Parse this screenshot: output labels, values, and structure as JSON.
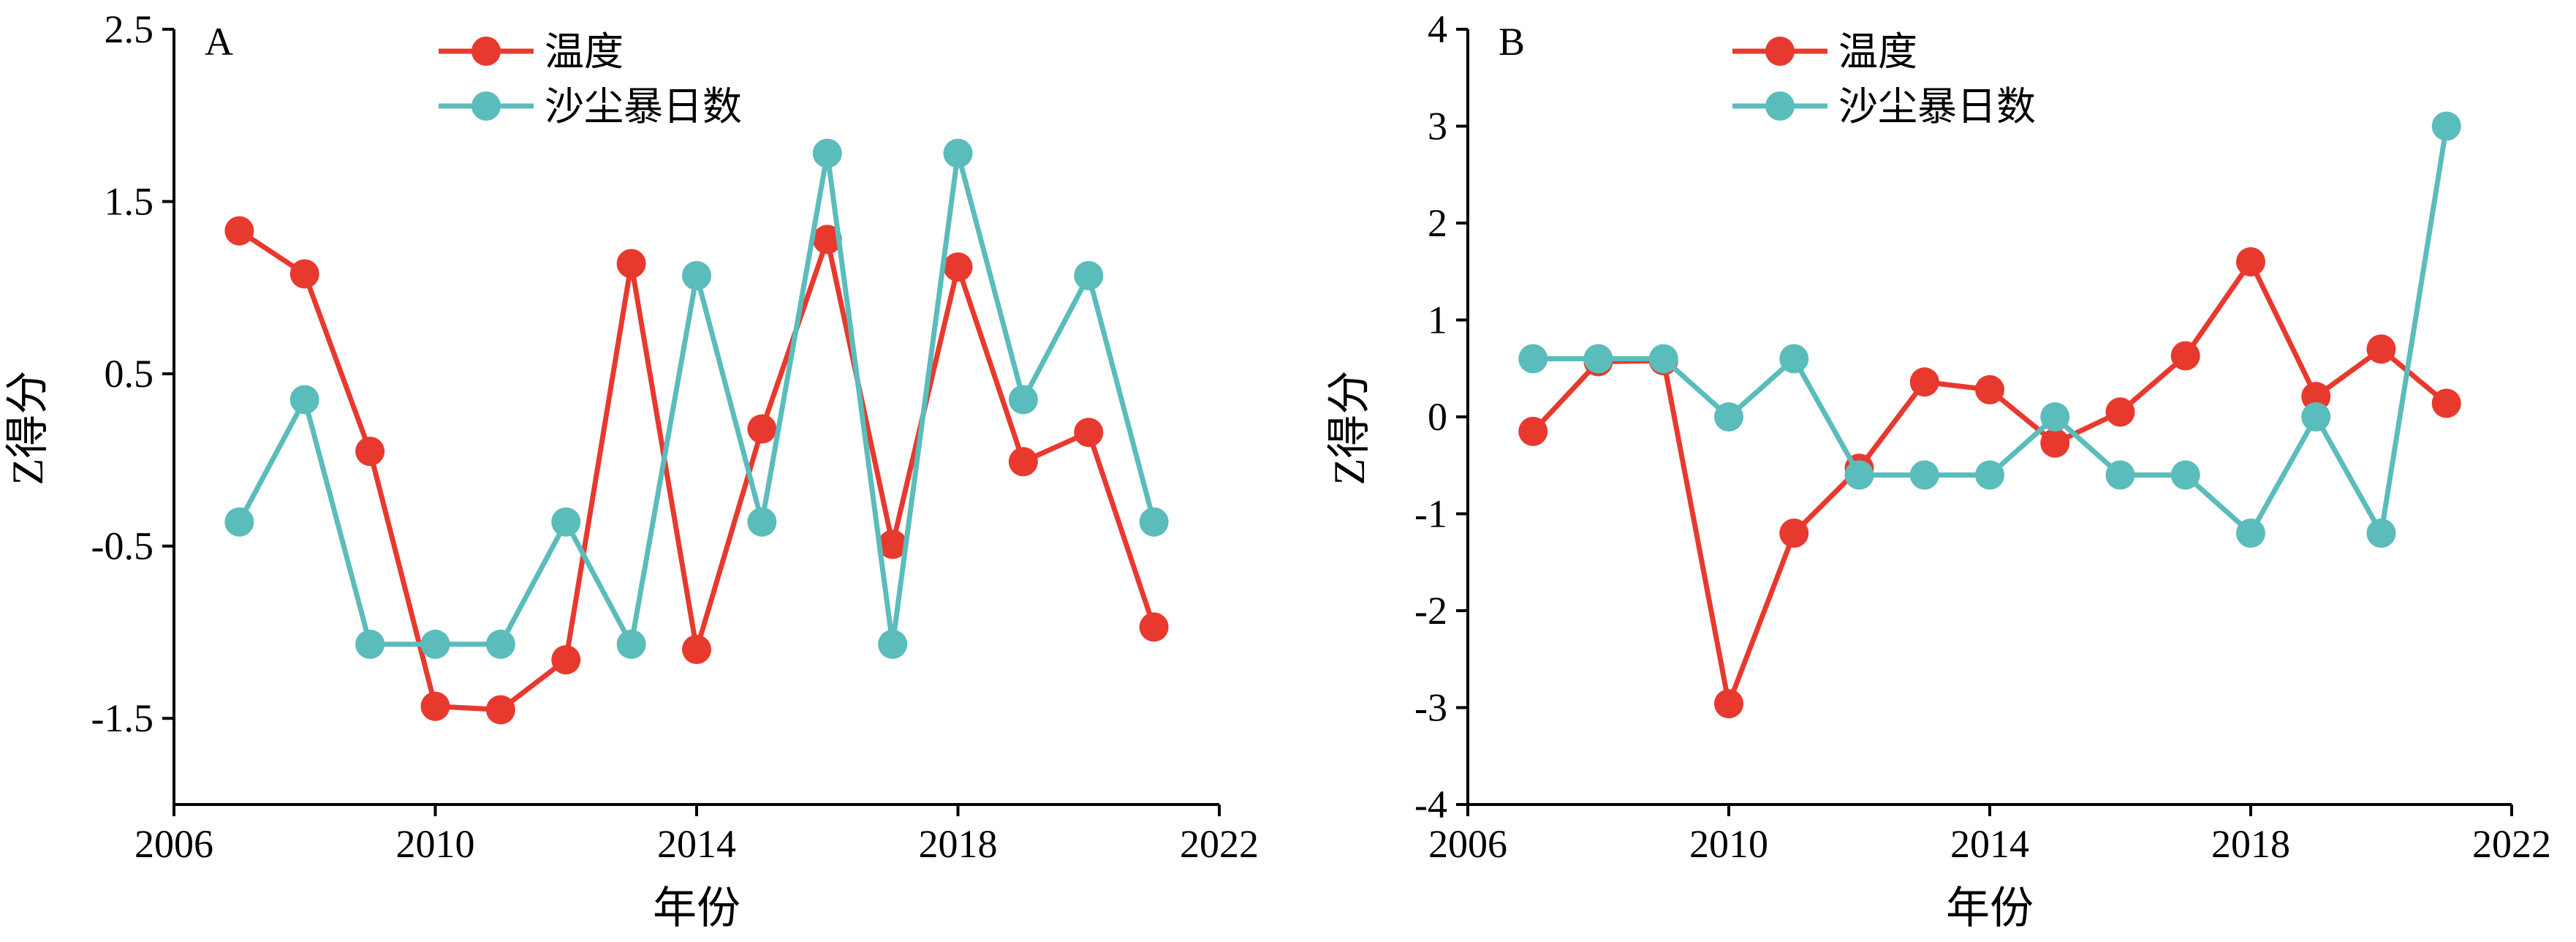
{
  "chart_data": [
    {
      "type": "line",
      "panel_label": "A",
      "xlabel": "年份",
      "ylabel": "Z得分",
      "xlim": [
        2006,
        2022
      ],
      "ylim": [
        -2,
        2.5
      ],
      "xticks": [
        2006,
        2010,
        2014,
        2018,
        2022
      ],
      "yticks": [
        2.5,
        1.5,
        0.5,
        -0.5,
        -1.5
      ],
      "ytick_labels": [
        "2.5",
        "1.5",
        "0.5",
        "-0.5",
        "-1.5"
      ],
      "legend_position": "top-center",
      "grid": false,
      "x": [
        2007,
        2008,
        2009,
        2010,
        2011,
        2012,
        2013,
        2014,
        2015,
        2016,
        2017,
        2018,
        2019,
        2020,
        2021
      ],
      "series": [
        {
          "name": "温度",
          "color": "#e8392f",
          "values": [
            1.33,
            1.08,
            0.05,
            -1.43,
            -1.45,
            -1.16,
            1.14,
            -1.1,
            0.18,
            1.28,
            -0.49,
            1.12,
            -0.01,
            0.16,
            -0.97
          ]
        },
        {
          "name": "沙尘暴日数",
          "color": "#5bbcbc",
          "values": [
            -0.36,
            0.35,
            -1.07,
            -1.07,
            -1.07,
            -0.36,
            -1.07,
            1.07,
            -0.36,
            1.78,
            -1.07,
            1.78,
            0.35,
            1.07,
            -0.36
          ]
        }
      ]
    },
    {
      "type": "line",
      "panel_label": "B",
      "xlabel": "年份",
      "ylabel": "Z得分",
      "xlim": [
        2006,
        2022
      ],
      "ylim": [
        -4,
        4
      ],
      "xticks": [
        2006,
        2010,
        2014,
        2018,
        2022
      ],
      "yticks": [
        4,
        3,
        2,
        1,
        0,
        -1,
        -2,
        -3,
        -4
      ],
      "ytick_labels": [
        "4",
        "3",
        "2",
        "1",
        "0",
        "-1",
        "-2",
        "-3",
        "-4"
      ],
      "legend_position": "top-center",
      "grid": false,
      "x": [
        2007,
        2008,
        2009,
        2010,
        2011,
        2012,
        2013,
        2014,
        2015,
        2016,
        2017,
        2018,
        2019,
        2020,
        2021
      ],
      "series": [
        {
          "name": "温度",
          "color": "#e8392f",
          "values": [
            -0.15,
            0.57,
            0.58,
            -2.96,
            -1.2,
            -0.53,
            0.36,
            0.28,
            -0.27,
            0.05,
            0.63,
            1.6,
            0.21,
            0.7,
            0.14
          ]
        },
        {
          "name": "沙尘暴日数",
          "color": "#5bbcbc",
          "values": [
            0.6,
            0.6,
            0.6,
            0.0,
            0.6,
            -0.6,
            -0.6,
            -0.6,
            0.0,
            -0.6,
            -0.6,
            -1.2,
            0.0,
            -1.2,
            3.0
          ]
        }
      ]
    }
  ]
}
